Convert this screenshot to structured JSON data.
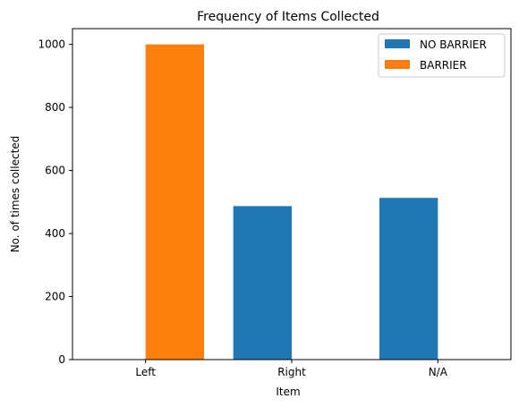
{
  "chart_data": {
    "type": "bar",
    "title": "Frequency of Items Collected",
    "xlabel": "Item",
    "ylabel": "No. of times collected",
    "categories": [
      "Left",
      "Right",
      "N/A"
    ],
    "series": [
      {
        "name": "NO BARRIER",
        "color": "#1f77b4",
        "values": [
          0,
          487,
          513
        ]
      },
      {
        "name": "BARRIER",
        "color": "#ff7f0e",
        "values": [
          1000,
          0,
          0
        ]
      }
    ],
    "ylim": [
      0,
      1050
    ],
    "yticks": [
      0,
      200,
      400,
      600,
      800,
      1000
    ],
    "grid": false,
    "legend_position": "top-right"
  }
}
